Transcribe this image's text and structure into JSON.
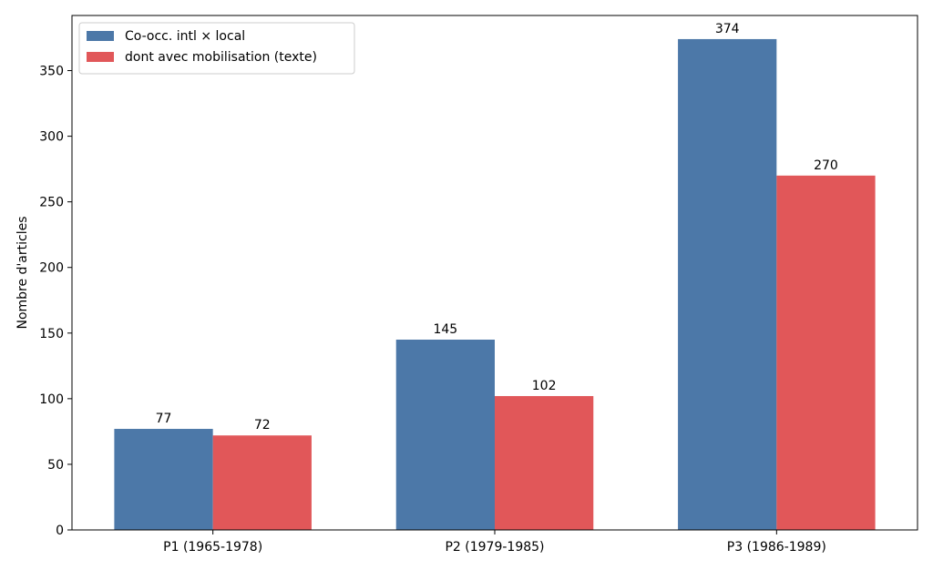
{
  "chart_data": {
    "type": "bar",
    "categories": [
      "P1 (1965-1978)",
      "P2 (1979-1985)",
      "P3 (1986-1989)"
    ],
    "series": [
      {
        "name": "Co-occ. intl × local",
        "values": [
          77,
          145,
          374
        ],
        "color": "#4c78a8"
      },
      {
        "name": "dont avec mobilisation (texte)",
        "values": [
          72,
          102,
          270
        ],
        "color": "#e15759"
      }
    ],
    "title": "",
    "xlabel": "",
    "ylabel": "Nombre d'articles",
    "ylim": [
      0,
      392
    ],
    "yticks": [
      0,
      50,
      100,
      150,
      200,
      250,
      300,
      350
    ],
    "grid": false,
    "legend": "top-left",
    "data_labels": true
  }
}
